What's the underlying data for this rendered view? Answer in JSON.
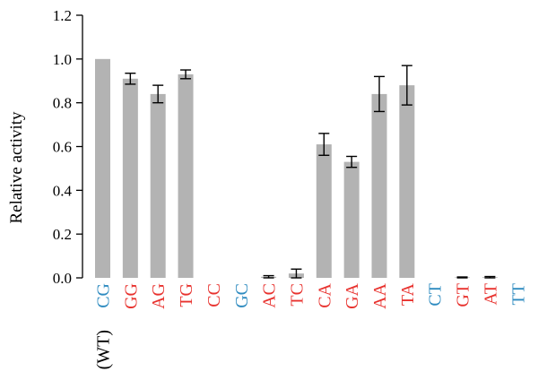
{
  "chart_data": {
    "type": "bar",
    "ylabel": "Relative activity",
    "xlabel": "",
    "ylim": [
      0,
      1.2
    ],
    "yticks": [
      "0.0",
      "0.2",
      "0.4",
      "0.6",
      "0.8",
      "1.0",
      "1.2"
    ],
    "categories": [
      {
        "first": "C",
        "second": "G",
        "note": "(WT)"
      },
      {
        "first": "G",
        "second": "G",
        "note": ""
      },
      {
        "first": "A",
        "second": "G",
        "note": ""
      },
      {
        "first": "T",
        "second": "G",
        "note": ""
      },
      {
        "first": "C",
        "second": "C",
        "note": ""
      },
      {
        "first": "G",
        "second": "C",
        "note": ""
      },
      {
        "first": "A",
        "second": "C",
        "note": ""
      },
      {
        "first": "T",
        "second": "C",
        "note": ""
      },
      {
        "first": "C",
        "second": "A",
        "note": ""
      },
      {
        "first": "G",
        "second": "A",
        "note": ""
      },
      {
        "first": "A",
        "second": "A",
        "note": ""
      },
      {
        "first": "T",
        "second": "A",
        "note": ""
      },
      {
        "first": "C",
        "second": "T",
        "note": ""
      },
      {
        "first": "G",
        "second": "T",
        "note": ""
      },
      {
        "first": "A",
        "second": "T",
        "note": ""
      },
      {
        "first": "T",
        "second": "T",
        "note": ""
      }
    ],
    "label_colors": [
      "blue",
      "red",
      "red",
      "red",
      "red",
      "blue",
      "red",
      "red",
      "red",
      "red",
      "red",
      "red",
      "blue",
      "red",
      "red",
      "blue"
    ],
    "values": [
      1.0,
      0.91,
      0.84,
      0.93,
      0.0,
      0.0,
      0.005,
      0.02,
      0.61,
      0.53,
      0.84,
      0.88,
      0.0,
      0.002,
      0.003,
      0.0
    ],
    "errors": [
      0.0,
      0.025,
      0.04,
      0.02,
      0.0,
      0.0,
      0.005,
      0.02,
      0.05,
      0.025,
      0.08,
      0.09,
      0.0,
      0.002,
      0.003,
      0.0
    ],
    "grid": false,
    "colors": {
      "bar": "#b3b3b3",
      "error": "#000000",
      "axis": "#000000",
      "blue": "#2e8bc0",
      "red": "#e8322e"
    }
  }
}
